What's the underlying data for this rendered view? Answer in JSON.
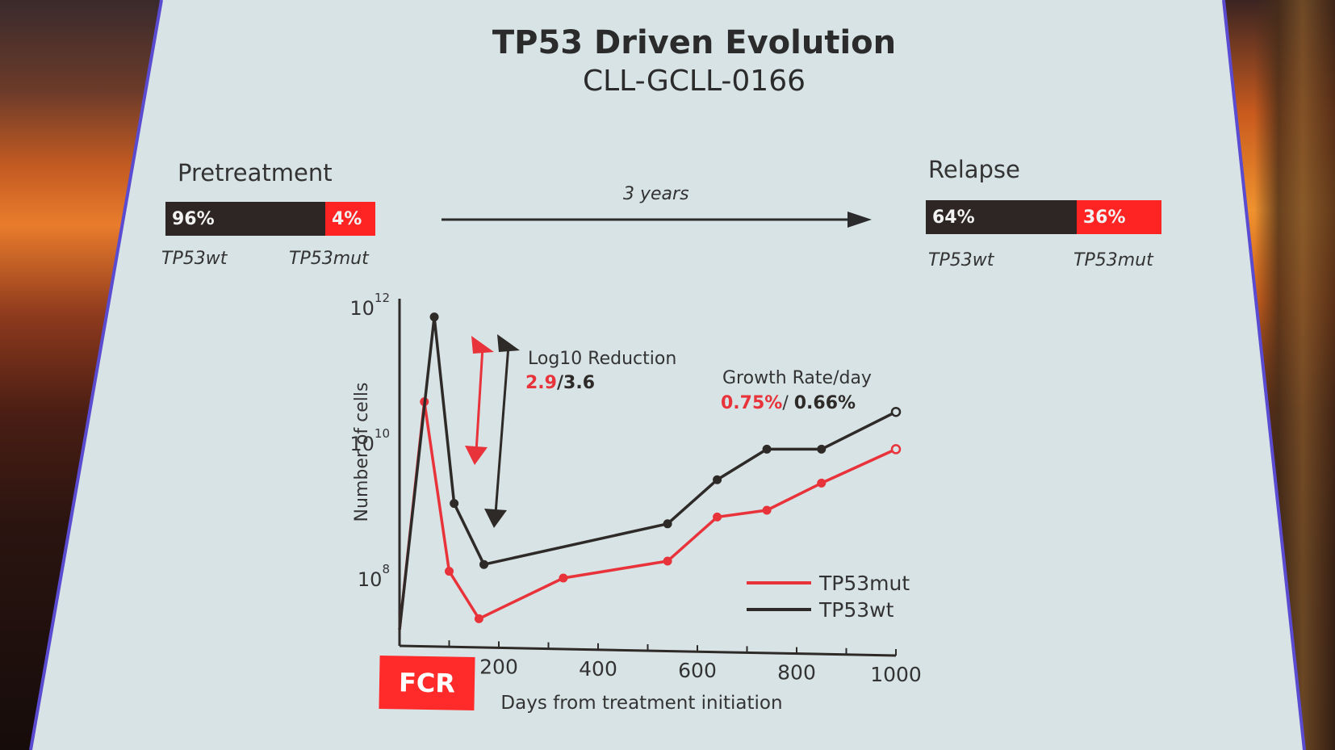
{
  "slide": {
    "title": "TP53 Driven Evolution",
    "subtitle": "CLL-GCLL-0166"
  },
  "pretreatment": {
    "heading": "Pretreatment",
    "wt_pct": "96%",
    "mut_pct": "4%",
    "wt_value": 96,
    "mut_value": 4,
    "wt_label": "TP53wt",
    "mut_label": "TP53mut"
  },
  "timeline": {
    "label": "3 years"
  },
  "relapse": {
    "heading": "Relapse",
    "wt_pct": "64%",
    "mut_pct": "36%",
    "wt_value": 64,
    "mut_value": 36,
    "wt_label": "TP53wt",
    "mut_label": "TP53mut"
  },
  "colors": {
    "mut": "#e8333a",
    "wt": "#2e2a28",
    "bar_dark": "#2e2624",
    "bar_red": "#ff2424"
  },
  "annotations": {
    "log_reduction_label": "Log10 Reduction",
    "log_reduction_mut": "2.9",
    "log_reduction_sep": "/",
    "log_reduction_wt": "3.6",
    "growth_label": "Growth Rate/day",
    "growth_mut": "0.75%",
    "growth_sep": "/ ",
    "growth_wt": "0.66%",
    "fcr_label": "FCR"
  },
  "chart_data": {
    "type": "line",
    "title": "",
    "xlabel": "Days from treatment initiation",
    "ylabel": "Number of cells",
    "xlim": [
      0,
      1000
    ],
    "ylim_log10": [
      7,
      12
    ],
    "x_ticks": [
      200,
      400,
      600,
      800,
      1000
    ],
    "y_ticks": [
      {
        "base": "10",
        "exp": "8",
        "log": 8
      },
      {
        "base": "10",
        "exp": "10",
        "log": 10
      },
      {
        "base": "10",
        "exp": "12",
        "log": 12
      }
    ],
    "series": [
      {
        "name": "TP53mut",
        "color": "#e8333a",
        "points": [
          [
            50,
            10.6
          ],
          [
            100,
            8.1
          ],
          [
            160,
            7.4
          ],
          [
            330,
            8.0
          ],
          [
            540,
            8.25
          ],
          [
            640,
            8.9
          ],
          [
            740,
            9.0
          ],
          [
            850,
            9.4
          ],
          [
            1000,
            9.9
          ]
        ]
      },
      {
        "name": "TP53wt",
        "color": "#2e2a28",
        "points": [
          [
            70,
            11.85
          ],
          [
            110,
            9.1
          ],
          [
            170,
            8.2
          ],
          [
            540,
            8.8
          ],
          [
            640,
            9.45
          ],
          [
            740,
            9.9
          ],
          [
            850,
            9.9
          ],
          [
            1000,
            10.45
          ]
        ]
      }
    ],
    "legend": [
      {
        "name": "TP53mut",
        "color": "#e8333a"
      },
      {
        "name": "TP53wt",
        "color": "#2e2a28"
      }
    ],
    "legend_position": "bottom-right"
  }
}
